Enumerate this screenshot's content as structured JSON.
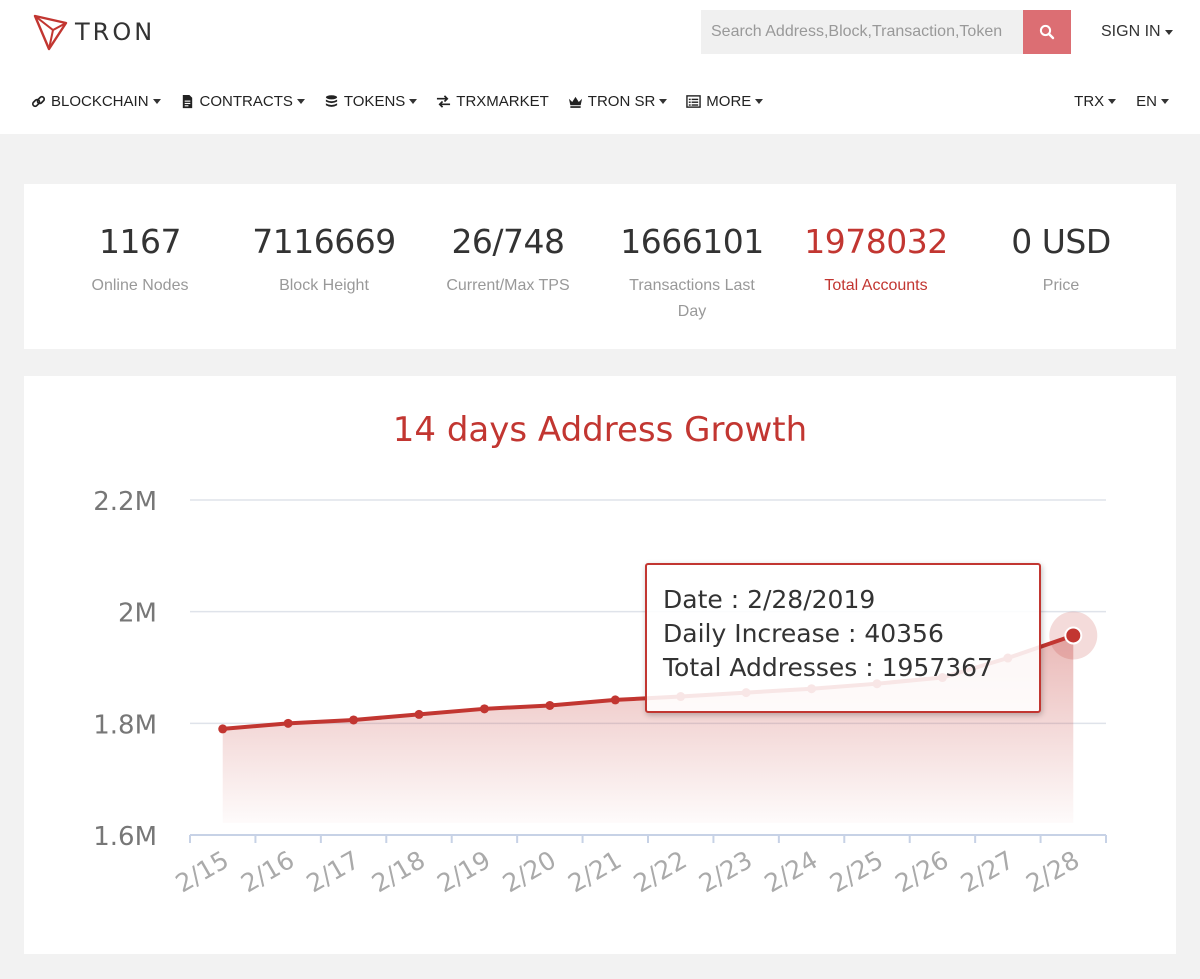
{
  "header": {
    "logo_text": "TRON",
    "search": {
      "placeholder": "Search Address,Block,Transaction,Token"
    },
    "signin_label": "SIGN IN"
  },
  "nav": {
    "items": [
      {
        "label": "BLOCKCHAIN",
        "icon": "link-icon",
        "dropdown": true
      },
      {
        "label": "CONTRACTS",
        "icon": "document-icon",
        "dropdown": true
      },
      {
        "label": "TOKENS",
        "icon": "coins-icon",
        "dropdown": true
      },
      {
        "label": "TRXMARKET",
        "icon": "exchange-icon",
        "dropdown": false
      },
      {
        "label": "TRON SR",
        "icon": "crown-icon",
        "dropdown": true
      },
      {
        "label": "MORE",
        "icon": "list-icon",
        "dropdown": true
      }
    ],
    "currency": "TRX",
    "language": "EN"
  },
  "stats": [
    {
      "value": "1167",
      "label": "Online Nodes"
    },
    {
      "value": "7116669",
      "label": "Block Height"
    },
    {
      "value": "26/748",
      "label": "Current/Max TPS"
    },
    {
      "value": "1666101",
      "label": "Transactions Last Day"
    },
    {
      "value": "1978032",
      "label": "Total Accounts"
    },
    {
      "value": "0 USD",
      "label": "Price"
    }
  ],
  "colors": {
    "accent": "#c23631",
    "search_button": "#dc6e73"
  },
  "chart_data": {
    "type": "area",
    "title": "14 days Address Growth",
    "categories": [
      "2/15",
      "2/16",
      "2/17",
      "2/18",
      "2/19",
      "2/20",
      "2/21",
      "2/22",
      "2/23",
      "2/24",
      "2/25",
      "2/26",
      "2/27",
      "2/28"
    ],
    "values": [
      1790000,
      1800000,
      1806000,
      1816000,
      1826000,
      1832000,
      1842000,
      1848000,
      1855000,
      1862000,
      1871000,
      1882000,
      1917000,
      1957367
    ],
    "yticks": [
      "2.2M",
      "2M",
      "1.8M",
      "1.6M"
    ],
    "ylim": [
      1600000,
      2200000
    ],
    "grid": true,
    "tooltip": {
      "date": "Date : 2/28/2019",
      "daily_increase": "Daily Increase : 40356",
      "total_addresses": "Total Addresses : 1957367"
    }
  }
}
